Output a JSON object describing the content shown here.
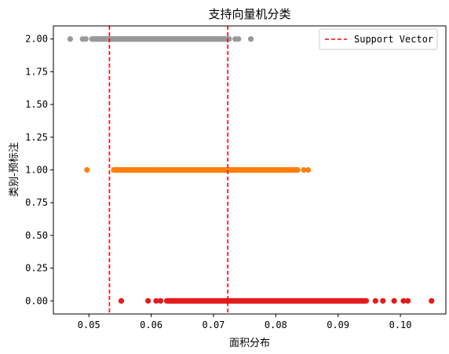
{
  "chart_data": {
    "type": "scatter",
    "title": "支持向量机分类",
    "xlabel": "面积分布",
    "ylabel": "类别-预标注",
    "xlim": [
      0.0443,
      0.1073
    ],
    "ylim": [
      -0.1,
      2.1
    ],
    "xticks": [
      0.05,
      0.06,
      0.07,
      0.08,
      0.09,
      0.1
    ],
    "xtick_labels": [
      "0.05",
      "0.06",
      "0.07",
      "0.08",
      "0.09",
      "0.10"
    ],
    "yticks": [
      0.0,
      0.25,
      0.5,
      0.75,
      1.0,
      1.25,
      1.5,
      1.75,
      2.0
    ],
    "ytick_labels": [
      "0.00",
      "0.25",
      "0.50",
      "0.75",
      "1.00",
      "1.25",
      "1.50",
      "1.75",
      "2.00"
    ],
    "grid": false,
    "legend": {
      "position": "top-right",
      "entries": [
        "Support Vector"
      ]
    },
    "series": [
      {
        "y": 2,
        "color": "#999999",
        "dense_range": [
          0.0505,
          0.0725
        ],
        "outliers": [
          0.047,
          0.049,
          0.0495,
          0.0735,
          0.074,
          0.076
        ]
      },
      {
        "y": 1,
        "color": "#ff7f0e",
        "dense_range": [
          0.054,
          0.0835
        ],
        "outliers": [
          0.0497,
          0.0845,
          0.0852
        ]
      },
      {
        "y": 0,
        "color": "#e41a1c",
        "dense_range": [
          0.0625,
          0.0945
        ],
        "outliers": [
          0.0552,
          0.0595,
          0.0608,
          0.0615,
          0.096,
          0.0972,
          0.099,
          0.1005,
          0.1012,
          0.105
        ]
      }
    ],
    "support_vectors": {
      "name": "Support Vector",
      "x": [
        0.0533,
        0.0723
      ],
      "color": "#ff0000",
      "style": "dashed"
    }
  }
}
